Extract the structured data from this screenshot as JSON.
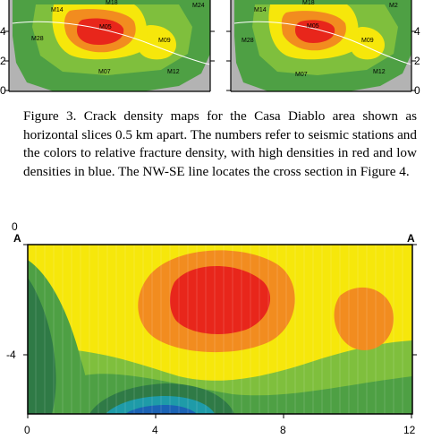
{
  "figure3": {
    "left_panel": {
      "y_ticks": [
        "4",
        "2",
        "0"
      ],
      "stations": [
        "M14",
        "M18",
        "M05",
        "M28",
        "M09",
        "M07",
        "M12",
        "M24"
      ]
    },
    "right_panel": {
      "y_ticks": [
        "4",
        "2",
        "0"
      ],
      "stations": [
        "M14",
        "M18",
        "M05",
        "M28",
        "M09",
        "M07",
        "M12",
        "M2"
      ]
    },
    "caption": "Figure 3.  Crack density maps for the Casa Diablo area shown as horizontal slices 0.5 km apart.  The numbers refer to seismic stations and the colors to relative fracture density, with high densities in red and low densities in blue.  The NW-SE line locates the cross section in Figure 4."
  },
  "figure4": {
    "left_label": "A",
    "right_label": "A",
    "y_ticks": [
      "0",
      "-4"
    ],
    "x_ticks": [
      "0",
      "4",
      "8",
      "12"
    ]
  },
  "colors": {
    "red": "#e8261b",
    "orange": "#f28c1f",
    "yellow": "#f6e70b",
    "light_green": "#7fbf3d",
    "green": "#4ea044",
    "dark_green": "#2f7a46",
    "teal": "#1e9ba8",
    "blue": "#1b63b5",
    "gray_bg": "#b3b3b3"
  }
}
